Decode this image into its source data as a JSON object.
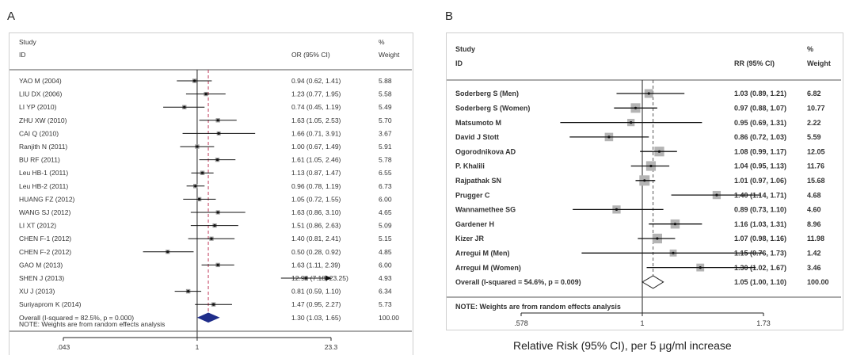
{
  "panels": [
    {
      "letter": "A",
      "col_study": "Study",
      "col_id": "ID",
      "col_effect": "OR (95% CI)",
      "col_pct": "%",
      "col_weight": "Weight",
      "note": "NOTE: Weights are from random effects analysis",
      "axis_title": "",
      "colors": {
        "square": "#9a9a9a",
        "diamond": "#1f2d8a",
        "overall_line": "#c0395a"
      },
      "chart_data": {
        "type": "forest",
        "measure": "OR",
        "xscale": "log",
        "xlim": [
          0.043,
          23.3
        ],
        "xticks": [
          0.043,
          1,
          23.3
        ],
        "xtick_labels": [
          ".043",
          "1",
          "23.3"
        ],
        "studies": [
          {
            "id": "YAO M (2004)",
            "est": 0.94,
            "lo": 0.62,
            "hi": 1.41,
            "ci_text": "0.94 (0.62, 1.41)",
            "weight": "5.88"
          },
          {
            "id": "LIU DX (2006)",
            "est": 1.23,
            "lo": 0.77,
            "hi": 1.95,
            "ci_text": "1.23 (0.77, 1.95)",
            "weight": "5.58"
          },
          {
            "id": "LI YP (2010)",
            "est": 0.74,
            "lo": 0.45,
            "hi": 1.19,
            "ci_text": "0.74 (0.45, 1.19)",
            "weight": "5.49"
          },
          {
            "id": "ZHU XW (2010)",
            "est": 1.63,
            "lo": 1.05,
            "hi": 2.53,
            "ci_text": "1.63 (1.05, 2.53)",
            "weight": "5.70"
          },
          {
            "id": "CAI Q (2010)",
            "est": 1.66,
            "lo": 0.71,
            "hi": 3.91,
            "ci_text": "1.66 (0.71, 3.91)",
            "weight": "3.67"
          },
          {
            "id": "Ranjith N (2011)",
            "est": 1.0,
            "lo": 0.67,
            "hi": 1.49,
            "ci_text": "1.00 (0.67, 1.49)",
            "weight": "5.91"
          },
          {
            "id": "BU RF (2011)",
            "est": 1.61,
            "lo": 1.05,
            "hi": 2.46,
            "ci_text": "1.61 (1.05, 2.46)",
            "weight": "5.78"
          },
          {
            "id": "Leu HB-1 (2011)",
            "est": 1.13,
            "lo": 0.87,
            "hi": 1.47,
            "ci_text": "1.13 (0.87, 1.47)",
            "weight": "6.55"
          },
          {
            "id": "Leu HB-2 (2011)",
            "est": 0.96,
            "lo": 0.78,
            "hi": 1.19,
            "ci_text": "0.96 (0.78, 1.19)",
            "weight": "6.73"
          },
          {
            "id": "HUANG FZ (2012)",
            "est": 1.05,
            "lo": 0.72,
            "hi": 1.55,
            "ci_text": "1.05 (0.72, 1.55)",
            "weight": "6.00"
          },
          {
            "id": "WANG SJ (2012)",
            "est": 1.63,
            "lo": 0.86,
            "hi": 3.1,
            "ci_text": "1.63 (0.86, 3.10)",
            "weight": "4.65"
          },
          {
            "id": "LI XT (2012)",
            "est": 1.51,
            "lo": 0.86,
            "hi": 2.63,
            "ci_text": "1.51 (0.86, 2.63)",
            "weight": "5.09"
          },
          {
            "id": "CHEN F-1 (2012)",
            "est": 1.4,
            "lo": 0.81,
            "hi": 2.41,
            "ci_text": "1.40 (0.81, 2.41)",
            "weight": "5.15"
          },
          {
            "id": "CHEN F-2 (2012)",
            "est": 0.5,
            "lo": 0.28,
            "hi": 0.92,
            "ci_text": "0.50 (0.28, 0.92)",
            "weight": "4.85"
          },
          {
            "id": "GAO M (2013)",
            "est": 1.63,
            "lo": 1.11,
            "hi": 2.39,
            "ci_text": "1.63 (1.11, 2.39)",
            "weight": "6.00"
          },
          {
            "id": "SHEN J (2013)",
            "est": 12.92,
            "lo": 7.18,
            "hi": 23.25,
            "ci_text": "12.92 (7.18, 23.25)",
            "weight": "4.93",
            "arrow": true
          },
          {
            "id": "XU J (2013)",
            "est": 0.81,
            "lo": 0.59,
            "hi": 1.1,
            "ci_text": "0.81 (0.59, 1.10)",
            "weight": "6.34"
          },
          {
            "id": "Suriyaprom K (2014)",
            "est": 1.47,
            "lo": 0.95,
            "hi": 2.27,
            "ci_text": "1.47 (0.95, 2.27)",
            "weight": "5.73"
          }
        ],
        "overall": {
          "label": "Overall  (I-squared = 82.5%, p = 0.000)",
          "est": 1.3,
          "lo": 1.03,
          "hi": 1.65,
          "ci_text": "1.30 (1.03, 1.65)",
          "weight": "100.00"
        }
      }
    },
    {
      "letter": "B",
      "col_study": "Study",
      "col_id": "ID",
      "col_effect": "RR (95% CI)",
      "col_pct": "%",
      "col_weight": "Weight",
      "note": "NOTE: Weights are from random effects analysis",
      "axis_title": "Relative Risk (95% CI), per 5 μg/ml increase",
      "colors": {
        "square": "#b4b4b4",
        "diamond": "#ffffff",
        "overall_line": "#555555"
      },
      "chart_data": {
        "type": "forest",
        "measure": "RR",
        "xscale": "log",
        "xlim": [
          0.578,
          1.73
        ],
        "xticks": [
          0.578,
          1,
          1.73
        ],
        "xtick_labels": [
          ".578",
          "1",
          "1.73"
        ],
        "studies": [
          {
            "id": "Soderberg S (Men)",
            "est": 1.03,
            "lo": 0.89,
            "hi": 1.21,
            "ci_text": "1.03 (0.89, 1.21)",
            "weight": "6.82"
          },
          {
            "id": "Soderberg S (Women)",
            "est": 0.97,
            "lo": 0.88,
            "hi": 1.07,
            "ci_text": "0.97 (0.88, 1.07)",
            "weight": "10.77"
          },
          {
            "id": "Matsumoto M",
            "est": 0.95,
            "lo": 0.69,
            "hi": 1.31,
            "ci_text": "0.95 (0.69, 1.31)",
            "weight": "2.22"
          },
          {
            "id": "David J Stott",
            "est": 0.86,
            "lo": 0.72,
            "hi": 1.03,
            "ci_text": "0.86 (0.72, 1.03)",
            "weight": "5.59"
          },
          {
            "id": "Ogorodnikova AD",
            "est": 1.08,
            "lo": 0.99,
            "hi": 1.17,
            "ci_text": "1.08 (0.99, 1.17)",
            "weight": "12.05"
          },
          {
            "id": "P. Khalili",
            "est": 1.04,
            "lo": 0.95,
            "hi": 1.13,
            "ci_text": "1.04 (0.95, 1.13)",
            "weight": "11.76"
          },
          {
            "id": "Rajpathak SN",
            "est": 1.01,
            "lo": 0.97,
            "hi": 1.06,
            "ci_text": "1.01 (0.97, 1.06)",
            "weight": "15.68"
          },
          {
            "id": "Prugger C",
            "est": 1.4,
            "lo": 1.14,
            "hi": 1.71,
            "ci_text": "1.40 (1.14, 1.71)",
            "weight": "4.68"
          },
          {
            "id": "Wannamethee SG",
            "est": 0.89,
            "lo": 0.73,
            "hi": 1.1,
            "ci_text": "0.89 (0.73, 1.10)",
            "weight": "4.60"
          },
          {
            "id": "Gardener H",
            "est": 1.16,
            "lo": 1.03,
            "hi": 1.31,
            "ci_text": "1.16 (1.03, 1.31)",
            "weight": "8.96"
          },
          {
            "id": "Kizer JR",
            "est": 1.07,
            "lo": 0.98,
            "hi": 1.16,
            "ci_text": "1.07 (0.98, 1.16)",
            "weight": "11.98"
          },
          {
            "id": "Arregui M  (Men)",
            "est": 1.15,
            "lo": 0.76,
            "hi": 1.73,
            "ci_text": "1.15 (0.76, 1.73)",
            "weight": "1.42"
          },
          {
            "id": "Arregui M (Women)",
            "est": 1.3,
            "lo": 1.02,
            "hi": 1.67,
            "ci_text": "1.30 (1.02, 1.67)",
            "weight": "3.46"
          }
        ],
        "overall": {
          "label": "Overall  (I-squared = 54.6%, p = 0.009)",
          "est": 1.05,
          "lo": 1.0,
          "hi": 1.1,
          "ci_text": "1.05 (1.00, 1.10)",
          "weight": "100.00"
        }
      }
    }
  ]
}
